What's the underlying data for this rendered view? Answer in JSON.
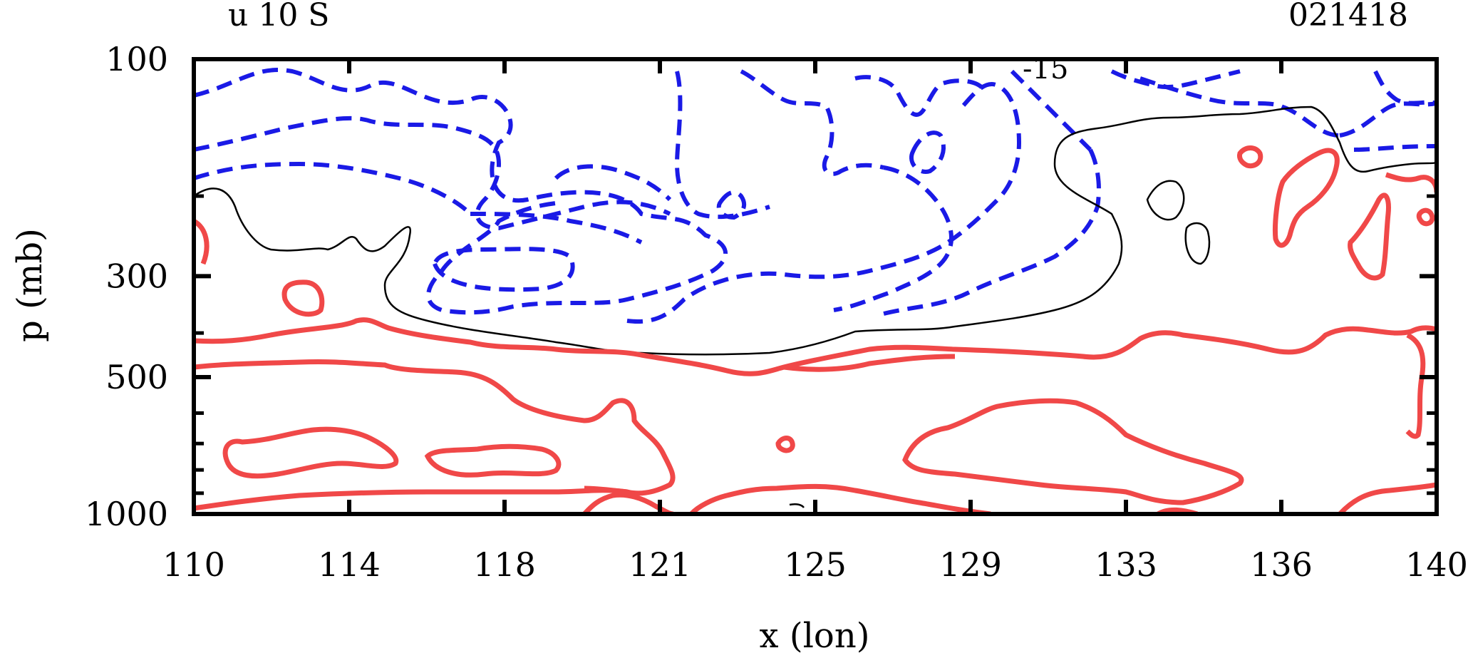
{
  "chart_data": {
    "type": "contour",
    "title_left": "u 10 S",
    "title_right": "021418",
    "xlabel": "x (lon)",
    "ylabel": "p (mb)",
    "x_ticks": [
      "110",
      "114",
      "118",
      "121",
      "125",
      "129",
      "133",
      "136",
      "140"
    ],
    "y_ticks": [
      "100",
      "300",
      "500",
      "1000"
    ],
    "xlim": [
      110,
      140
    ],
    "ylim": [
      100,
      1000
    ],
    "y_scale": "log",
    "contour_label": "-15",
    "colors": {
      "negative": "#1a1ae6",
      "positive": "#f04848",
      "zero": "#000000"
    }
  }
}
